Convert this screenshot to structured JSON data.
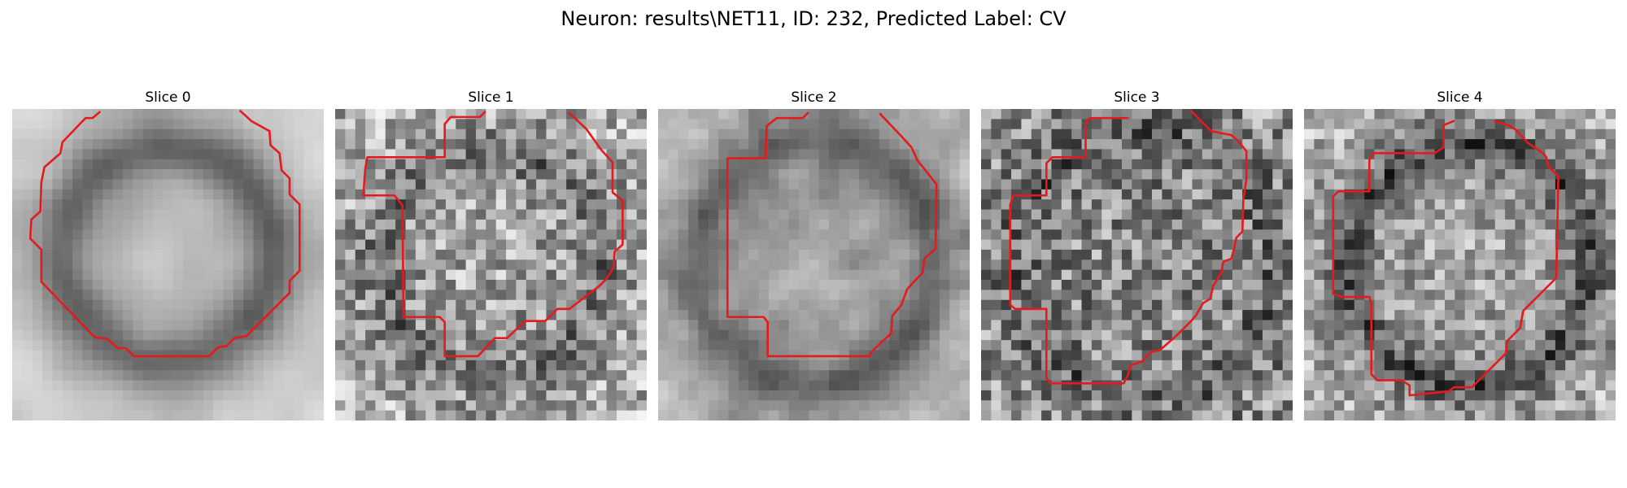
{
  "figure": {
    "title": "Neuron: results\\NET11, ID: 232, Predicted Label: CV"
  },
  "panels": [
    {
      "title": "Slice 0"
    },
    {
      "title": "Slice 1"
    },
    {
      "title": "Slice 2"
    },
    {
      "title": "Slice 3"
    },
    {
      "title": "Slice 4"
    }
  ],
  "colors": {
    "contour": "#e41a1c",
    "background": "#ffffff"
  }
}
